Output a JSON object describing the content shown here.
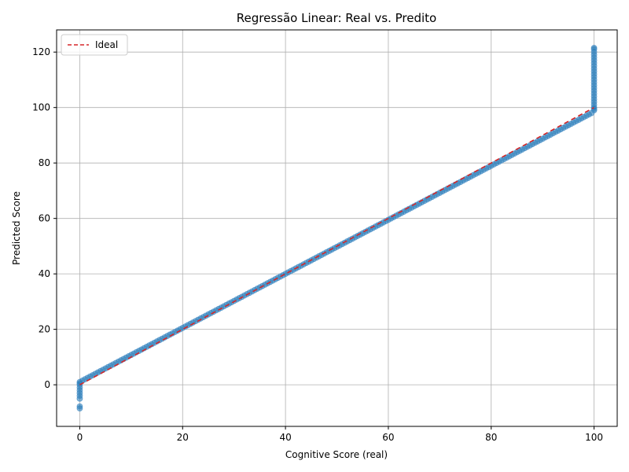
{
  "chart_data": {
    "type": "scatter",
    "title": "Regressão Linear: Real vs. Predito",
    "xlabel": "Cognitive Score (real)",
    "ylabel": "Predicted Score",
    "xlim": [
      -4.5,
      104.5
    ],
    "ylim": [
      -15,
      128
    ],
    "xticks": [
      0,
      20,
      40,
      60,
      80,
      100
    ],
    "yticks": [
      0,
      20,
      40,
      60,
      80,
      100,
      120
    ],
    "grid": true,
    "legend": {
      "placement": "top-left",
      "entries": [
        "Ideal"
      ]
    },
    "series": [
      {
        "name": "",
        "kind": "scatter",
        "color": "#1f77b4",
        "edge_color": "#4a90c8",
        "alpha": 0.55,
        "segments": [
          {
            "x_from": 0.5,
            "x_to": 99.5,
            "step": 0.5,
            "pred_at_x_from": 1.5,
            "pred_at_x_to": 98.0
          }
        ],
        "x_zero_predictions": [
          -8.5,
          -7.8,
          -5,
          -4,
          -3,
          -2,
          -1,
          0,
          0.5,
          1
        ],
        "x_hundred_predictions": [
          99,
          99.5,
          100,
          101,
          102,
          103,
          104,
          105,
          106,
          107,
          108,
          109,
          110,
          111,
          112,
          113,
          114,
          115,
          116,
          117,
          118,
          119,
          120,
          121,
          121.5
        ]
      }
    ],
    "ideal_line": {
      "name": "Ideal",
      "x": [
        0,
        100
      ],
      "y": [
        0,
        100
      ],
      "color": "#d62728",
      "style": "dashed"
    }
  }
}
